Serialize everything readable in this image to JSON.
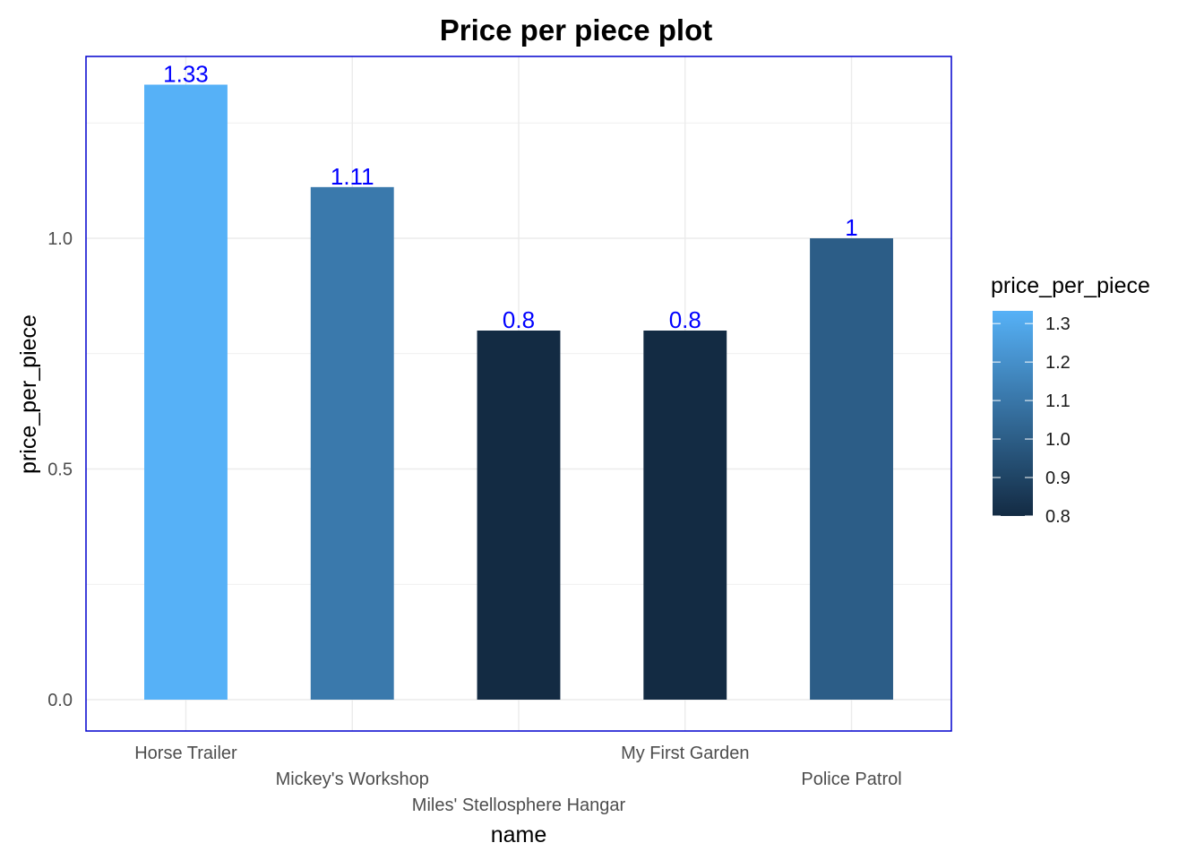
{
  "chart_data": {
    "type": "bar",
    "title": "Price per piece plot",
    "xlabel": "name",
    "ylabel": "price_per_piece",
    "categories": [
      "Horse Trailer",
      "Mickey's Workshop",
      "Miles' Stellosphere Hangar",
      "My First Garden",
      "Police Patrol"
    ],
    "values": [
      1.333,
      1.111,
      0.8,
      0.8,
      1.0
    ],
    "data_labels": [
      "1.33",
      "1.11",
      "0.8",
      "0.8",
      "1"
    ],
    "ylim": [
      -0.066,
      1.4
    ],
    "yticks": [
      0.0,
      0.5,
      1.0
    ],
    "ytick_labels": [
      "0.0",
      "0.5",
      "1.0"
    ],
    "grid": true,
    "panel_border_color": "#0000cd",
    "label_color": "#0000ff",
    "legend": {
      "title": "price_per_piece",
      "position": "right",
      "range": [
        0.8,
        1.333
      ],
      "ticks": [
        0.8,
        0.9,
        1.0,
        1.1,
        1.2,
        1.3
      ],
      "tick_labels": [
        "0.8",
        "0.9",
        "1.0",
        "1.1",
        "1.2",
        "1.3"
      ],
      "low_color": "#132B43",
      "high_color": "#56B1F7"
    }
  }
}
